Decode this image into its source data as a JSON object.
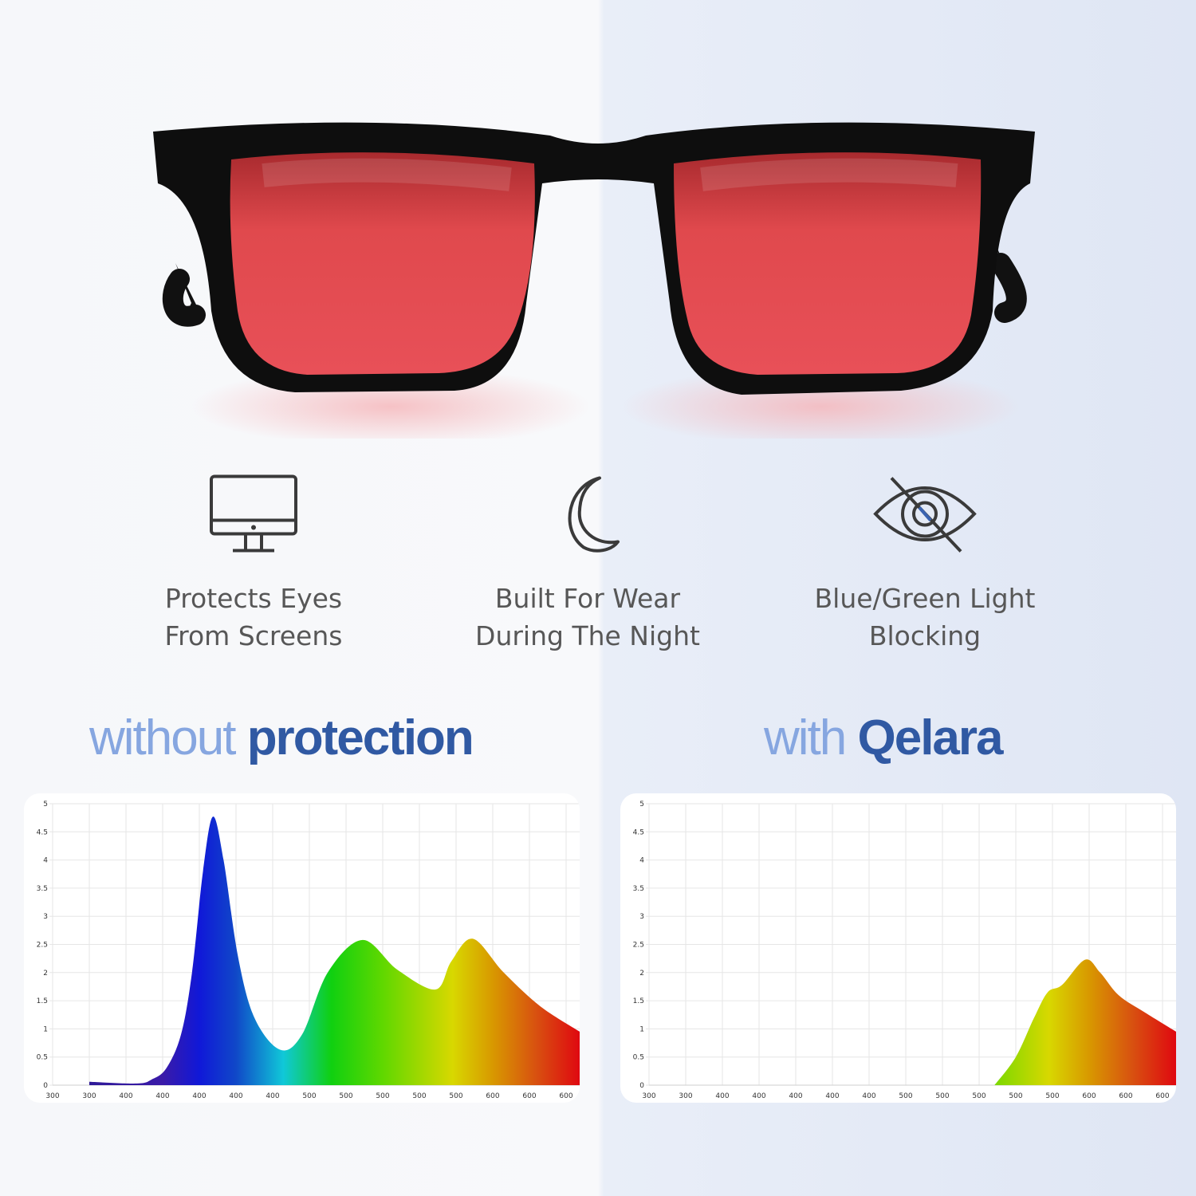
{
  "product": {
    "lens_color": "#e8494f",
    "frame_color": "#111111"
  },
  "features": [
    {
      "icon": "monitor-icon",
      "line1": "Protects Eyes",
      "line2": "From Screens"
    },
    {
      "icon": "moon-icon",
      "line1": "Built For Wear",
      "line2": "During The Night"
    },
    {
      "icon": "eye-slash-icon",
      "line1": "Blue/Green Light",
      "line2": "Blocking"
    }
  ],
  "headings": {
    "left": {
      "light": "without",
      "dark": "protection"
    },
    "right": {
      "light": "with",
      "dark": "Qelara"
    },
    "light_color": "#86a6e0",
    "dark_color": "#3059a3"
  },
  "chart_data": [
    {
      "type": "area",
      "title": "",
      "xlabel": "",
      "ylabel": "",
      "ylim": [
        0,
        5
      ],
      "y_ticks": [
        "0",
        "0.5",
        "1",
        "1.5",
        "2",
        "2.5",
        "3",
        "3.5",
        "4",
        "4.5",
        "5"
      ],
      "x_ticks": [
        "300",
        "300",
        "400",
        "400",
        "400",
        "400",
        "400",
        "500",
        "500",
        "500",
        "500",
        "500",
        "600",
        "600",
        "600"
      ],
      "grid": true,
      "x_is_tick_index": true,
      "points": [
        [
          1.0,
          0.06
        ],
        [
          2.3,
          0.03
        ],
        [
          2.7,
          0.1
        ],
        [
          3.1,
          0.3
        ],
        [
          3.5,
          0.9
        ],
        [
          3.8,
          2.0
        ],
        [
          4.1,
          3.8
        ],
        [
          4.37,
          4.77
        ],
        [
          4.66,
          4.0
        ],
        [
          5.05,
          2.3
        ],
        [
          5.5,
          1.2
        ],
        [
          6.2,
          0.63
        ],
        [
          6.8,
          0.9
        ],
        [
          7.5,
          2.0
        ],
        [
          8.45,
          2.58
        ],
        [
          9.4,
          2.05
        ],
        [
          10.44,
          1.7
        ],
        [
          10.87,
          2.2
        ],
        [
          11.46,
          2.6
        ],
        [
          12.3,
          2.0
        ],
        [
          13.3,
          1.4
        ],
        [
          14.37,
          0.95
        ]
      ]
    },
    {
      "type": "area",
      "title": "",
      "xlabel": "",
      "ylabel": "",
      "ylim": [
        0,
        5
      ],
      "y_ticks": [
        "0",
        "0.5",
        "1",
        "1.5",
        "2",
        "2.5",
        "3",
        "3.5",
        "4",
        "4.5",
        "5"
      ],
      "x_ticks": [
        "300",
        "300",
        "400",
        "400",
        "400",
        "400",
        "400",
        "500",
        "500",
        "500",
        "500",
        "500",
        "600",
        "600",
        "600"
      ],
      "grid": true,
      "x_is_tick_index": true,
      "points": [
        [
          9.42,
          0
        ],
        [
          10.0,
          0.5
        ],
        [
          10.5,
          1.2
        ],
        [
          10.87,
          1.65
        ],
        [
          11.26,
          1.78
        ],
        [
          11.89,
          2.23
        ],
        [
          12.3,
          2.0
        ],
        [
          12.8,
          1.6
        ],
        [
          13.5,
          1.3
        ],
        [
          14.37,
          0.95
        ]
      ]
    }
  ]
}
